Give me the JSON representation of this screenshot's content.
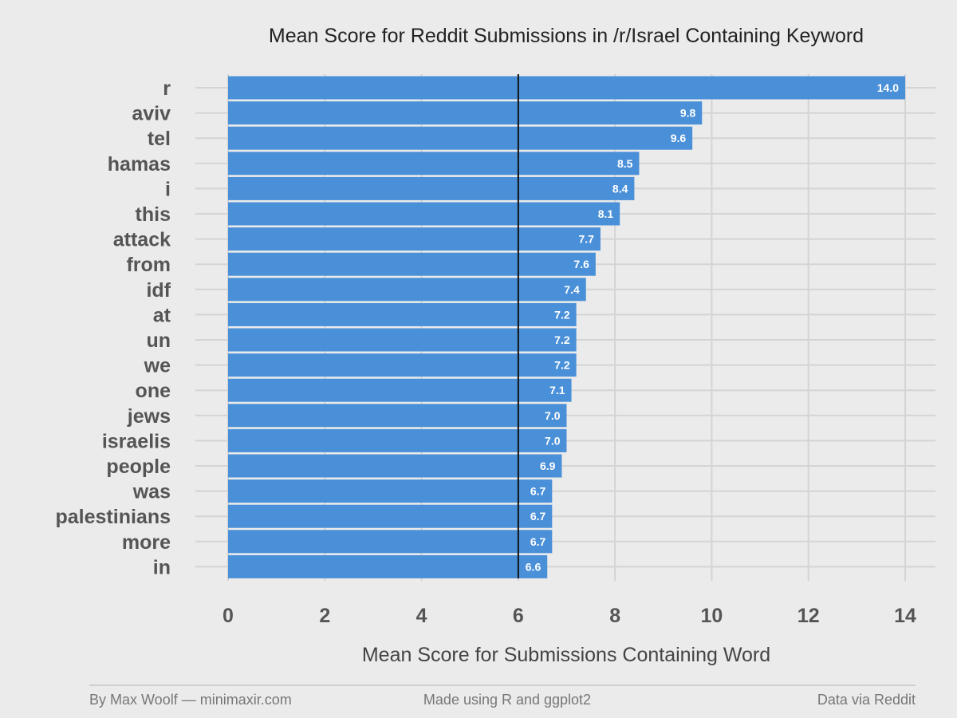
{
  "chart_data": {
    "type": "bar",
    "orientation": "horizontal",
    "title": "Mean Score for Reddit Submissions in /r/Israel Containing Keyword",
    "xlabel": "Mean Score for Submissions Containing Word",
    "ylabel": "",
    "categories": [
      "r",
      "aviv",
      "tel",
      "hamas",
      "i",
      "this",
      "attack",
      "from",
      "idf",
      "at",
      "un",
      "we",
      "one",
      "jews",
      "israelis",
      "people",
      "was",
      "palestinians",
      "more",
      "in"
    ],
    "values": [
      14.0,
      9.8,
      9.6,
      8.5,
      8.4,
      8.1,
      7.7,
      7.6,
      7.4,
      7.2,
      7.2,
      7.2,
      7.1,
      7.0,
      7.0,
      6.9,
      6.7,
      6.7,
      6.7,
      6.6
    ],
    "value_labels": [
      "14.0",
      "9.8",
      "9.6",
      "8.5",
      "8.4",
      "8.1",
      "7.7",
      "7.6",
      "7.4",
      "7.2",
      "7.2",
      "7.2",
      "7.1",
      "7.0",
      "7.0",
      "6.9",
      "6.7",
      "6.7",
      "6.7",
      "6.6"
    ],
    "xlim": [
      0,
      14
    ],
    "xticks": [
      0,
      2,
      4,
      6,
      8,
      10,
      12,
      14
    ],
    "reference_line": 6,
    "grid": true,
    "legend": "none",
    "bar_color": "#4a90d9",
    "reference_line_color": "#111111"
  },
  "footer": {
    "left": "By Max Woolf — minimaxir.com",
    "center": "Made using R and ggplot2",
    "right": "Data via Reddit"
  }
}
